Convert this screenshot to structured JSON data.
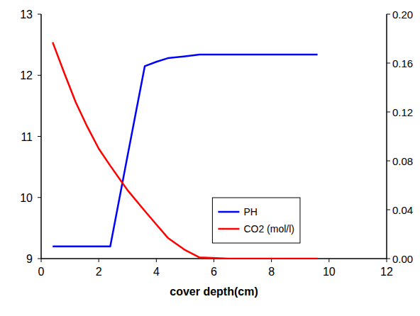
{
  "chart_data": {
    "type": "line",
    "x_label": "cover depth(cm)",
    "x": [
      0.4,
      0.8,
      1.2,
      1.6,
      2.0,
      2.4,
      3.0,
      3.6,
      4.0,
      4.4,
      5.0,
      5.5,
      6.5,
      7.5,
      8.5,
      9.6
    ],
    "series": [
      {
        "name": "PH",
        "color": "#0000ff",
        "values": [
          9.2,
          9.2,
          9.2,
          9.2,
          9.2,
          9.2,
          10.68,
          12.15,
          12.22,
          12.28,
          12.31,
          12.34,
          12.34,
          12.34,
          12.34,
          12.34
        ]
      },
      {
        "name": "CO2 (mol/l)",
        "color": "#ff0000",
        "axis": "y2",
        "values": [
          0.177,
          0.152,
          0.128,
          0.108,
          0.09,
          0.076,
          0.056,
          0.039,
          0.028,
          0.017,
          0.007,
          0.001,
          0,
          0,
          0,
          0
        ]
      }
    ],
    "xlim": [
      0,
      12
    ],
    "xticks": [
      0,
      2,
      4,
      6,
      8,
      10,
      12
    ],
    "ylim": [
      9,
      13
    ],
    "yticks": [
      9,
      10,
      11,
      12,
      13
    ],
    "y2lim": [
      0,
      0.2
    ],
    "y2ticks": [
      {
        "value": 0,
        "label": "0.00"
      },
      0.04,
      0.08,
      0.12,
      0.16,
      {
        "value": 0.2,
        "label": "0.20"
      }
    ],
    "grid": false,
    "legend": "lower right"
  }
}
